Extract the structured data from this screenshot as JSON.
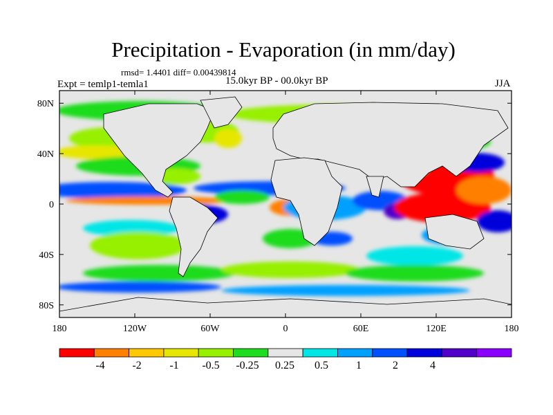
{
  "header": {
    "title": "Precipitation - Evaporation (in mm/day)",
    "stats": "rmsd= 1.4401 diff= 0.00439814",
    "period": "15.0kyr BP - 00.0kyr BP",
    "experiment": "Expt = temlp1-temla1",
    "season": "JJA"
  },
  "axes": {
    "lat_labels": [
      "80N",
      "40N",
      "0",
      "40S",
      "80S"
    ],
    "lon_labels": [
      "180",
      "120W",
      "60W",
      "0",
      "60E",
      "120E",
      "180"
    ]
  },
  "colorbar": {
    "colors": [
      "#ff0000",
      "#ff8000",
      "#ffc800",
      "#e6e600",
      "#96f000",
      "#1edc1e",
      "#e6e6e6",
      "#00e6e6",
      "#00a0ff",
      "#0050ff",
      "#0000dc",
      "#5000c8",
      "#8c00ff"
    ],
    "labels": [
      "-4",
      "-2",
      "-1",
      "-0.5",
      "-0.25",
      "0.25",
      "0.5",
      "1",
      "2",
      "4"
    ]
  },
  "chart_data": {
    "type": "heatmap",
    "title": "Precipitation - Evaporation (in mm/day)",
    "units": "mm/day",
    "x_range": [
      -180,
      180
    ],
    "y_range": [
      -90,
      90
    ],
    "contour_levels": [
      -4,
      -2,
      -1,
      -0.5,
      -0.25,
      0.25,
      0.5,
      1,
      2,
      4
    ],
    "colors": {
      "strong_negative": "#ff0000",
      "neutral": "#e6e6e6",
      "strong_positive": "#8c00ff"
    }
  }
}
